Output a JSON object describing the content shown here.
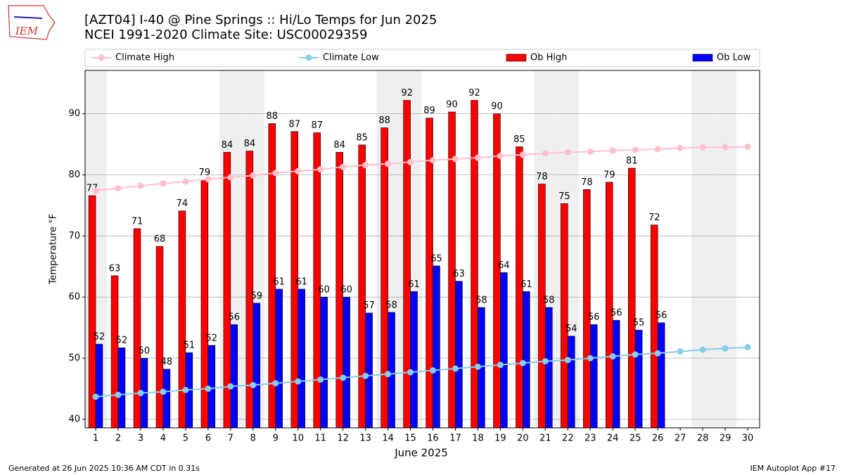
{
  "logo": "IEM",
  "chart_data": {
    "type": "bar",
    "title": "[AZT04] I-40 @ Pine Springs  :: Hi/Lo Temps for Jun 2025",
    "subtitle": "NCEI 1991-2020 Climate Site: USC00029359",
    "x_label": "June 2025",
    "y_label": "Temperature °F",
    "x": [
      1,
      2,
      3,
      4,
      5,
      6,
      7,
      8,
      9,
      10,
      11,
      12,
      13,
      14,
      15,
      16,
      17,
      18,
      19,
      20,
      21,
      22,
      23,
      24,
      25,
      26,
      27,
      28,
      29,
      30
    ],
    "xlim": [
      0.53,
      30.53
    ],
    "xticks": [
      1,
      2,
      3,
      4,
      5,
      6,
      7,
      8,
      9,
      10,
      11,
      12,
      13,
      14,
      15,
      16,
      17,
      18,
      19,
      20,
      21,
      22,
      23,
      24,
      25,
      26,
      27,
      28,
      29,
      30
    ],
    "ylim": [
      38.6,
      97.1
    ],
    "yticks": [
      40,
      50,
      60,
      70,
      80,
      90
    ],
    "grid": true,
    "shaded_days": [
      1,
      7,
      8,
      14,
      15,
      21,
      22,
      28,
      29
    ],
    "series": [
      {
        "name": "Climate High",
        "type": "line",
        "color": "#ffc0cb",
        "values": [
          77.4,
          77.8,
          78.2,
          78.6,
          78.9,
          79.3,
          79.6,
          79.9,
          80.3,
          80.6,
          80.9,
          81.3,
          81.6,
          81.8,
          82.1,
          82.4,
          82.6,
          82.8,
          83.1,
          83.3,
          83.5,
          83.7,
          83.8,
          84.0,
          84.1,
          84.2,
          84.4,
          84.5,
          84.5,
          84.6
        ]
      },
      {
        "name": "Climate Low",
        "type": "line",
        "color": "#87ceeb",
        "values": [
          43.7,
          44.0,
          44.3,
          44.5,
          44.8,
          45.0,
          45.4,
          45.6,
          45.9,
          46.2,
          46.5,
          46.8,
          47.1,
          47.4,
          47.7,
          48.0,
          48.3,
          48.6,
          48.9,
          49.2,
          49.5,
          49.7,
          50.0,
          50.3,
          50.6,
          50.8,
          51.1,
          51.4,
          51.6,
          51.8
        ]
      },
      {
        "name": "Ob High",
        "type": "bar",
        "color": "#ff0000",
        "values": [
          76.6,
          63.5,
          71.2,
          68.3,
          74.1,
          79.2,
          83.7,
          83.9,
          88.4,
          87.1,
          86.9,
          83.7,
          84.9,
          87.7,
          92.2,
          89.3,
          90.3,
          92.2,
          90.0,
          84.6,
          78.5,
          75.3,
          77.6,
          78.8,
          81.1,
          71.8,
          null,
          null,
          null,
          null
        ],
        "value_labels": [
          "77",
          "63",
          "71",
          "68",
          "74",
          "79",
          "84",
          "84",
          "88",
          "87",
          "87",
          "84",
          "85",
          "88",
          "92",
          "89",
          "90",
          "92",
          "90",
          "85",
          "78",
          "75",
          "78",
          "79",
          "81",
          "72",
          null,
          null,
          null,
          null
        ]
      },
      {
        "name": "Ob Low",
        "type": "bar",
        "color": "#0000ff",
        "values": [
          52.3,
          51.7,
          50.0,
          48.2,
          50.9,
          52.1,
          55.5,
          59.0,
          61.3,
          61.3,
          60.0,
          60.0,
          57.4,
          57.5,
          60.9,
          65.1,
          62.6,
          58.3,
          64.0,
          60.9,
          58.3,
          53.6,
          55.5,
          56.2,
          54.6,
          55.8,
          null,
          null,
          null,
          null
        ],
        "value_labels": [
          "52",
          "52",
          "50",
          "48",
          "51",
          "52",
          "56",
          "59",
          "61",
          "61",
          "60",
          "60",
          "57",
          "58",
          "61",
          "65",
          "63",
          "58",
          "64",
          "61",
          "58",
          "54",
          "56",
          "56",
          "55",
          "56",
          null,
          null,
          null,
          null
        ]
      }
    ],
    "footer_left": "Generated at 26 Jun 2025 10:36 AM CDT in 0.31s",
    "footer_right": "IEM Autoplot App #17"
  }
}
